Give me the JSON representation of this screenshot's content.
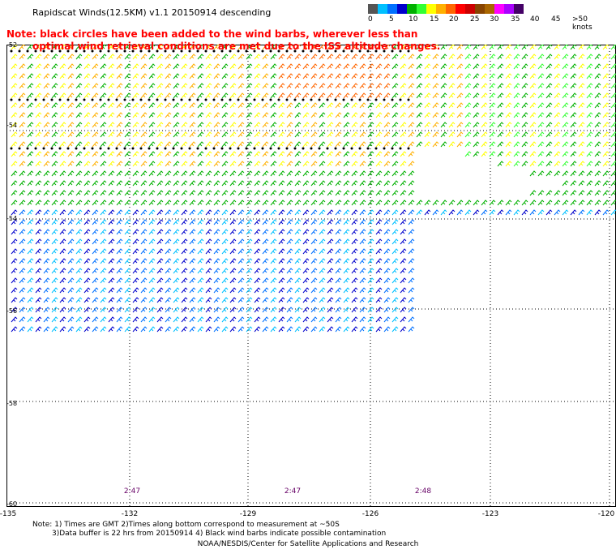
{
  "title": "Rapidscat Winds(12.5KM) v1.1 20150914 descending",
  "note": {
    "line1": "Note: black circles have been added to the wind barbs, wherever less than",
    "line2": "optimal wind retrieval conditions are met due to the ISS altitude changes."
  },
  "legend": {
    "labels": [
      "0",
      "5",
      "10",
      "15",
      "20",
      "25",
      "30",
      "35",
      "40",
      "45",
      ">50 knots"
    ],
    "colors": [
      "#555555",
      "#00c0ff",
      "#0070ff",
      "#0000cc",
      "#00b000",
      "#33ff33",
      "#ffff00",
      "#ffb000",
      "#ff6600",
      "#ff0000",
      "#cc0000",
      "#884400",
      "#aa6600",
      "#ff00ff",
      "#aa00ff",
      "#440066"
    ]
  },
  "axes": {
    "x_ticks": [
      "-135",
      "-132",
      "-129",
      "-126",
      "-123",
      "-120"
    ],
    "y_ticks": [
      "-52",
      "-54",
      "-56",
      "-58",
      "-60"
    ]
  },
  "pass_times": [
    "2:47",
    "2:47",
    "2:48"
  ],
  "footer": {
    "line1": "Note: 1) Times are GMT 2)Times along bottom correspond to measurement at ~50S",
    "line2": "3)Data buffer is 22 hrs from 20150914 4) Black wind barbs indicate possible contamination",
    "credit": "NOAA/NESDIS/Center for Satellite Applications and Research"
  }
}
